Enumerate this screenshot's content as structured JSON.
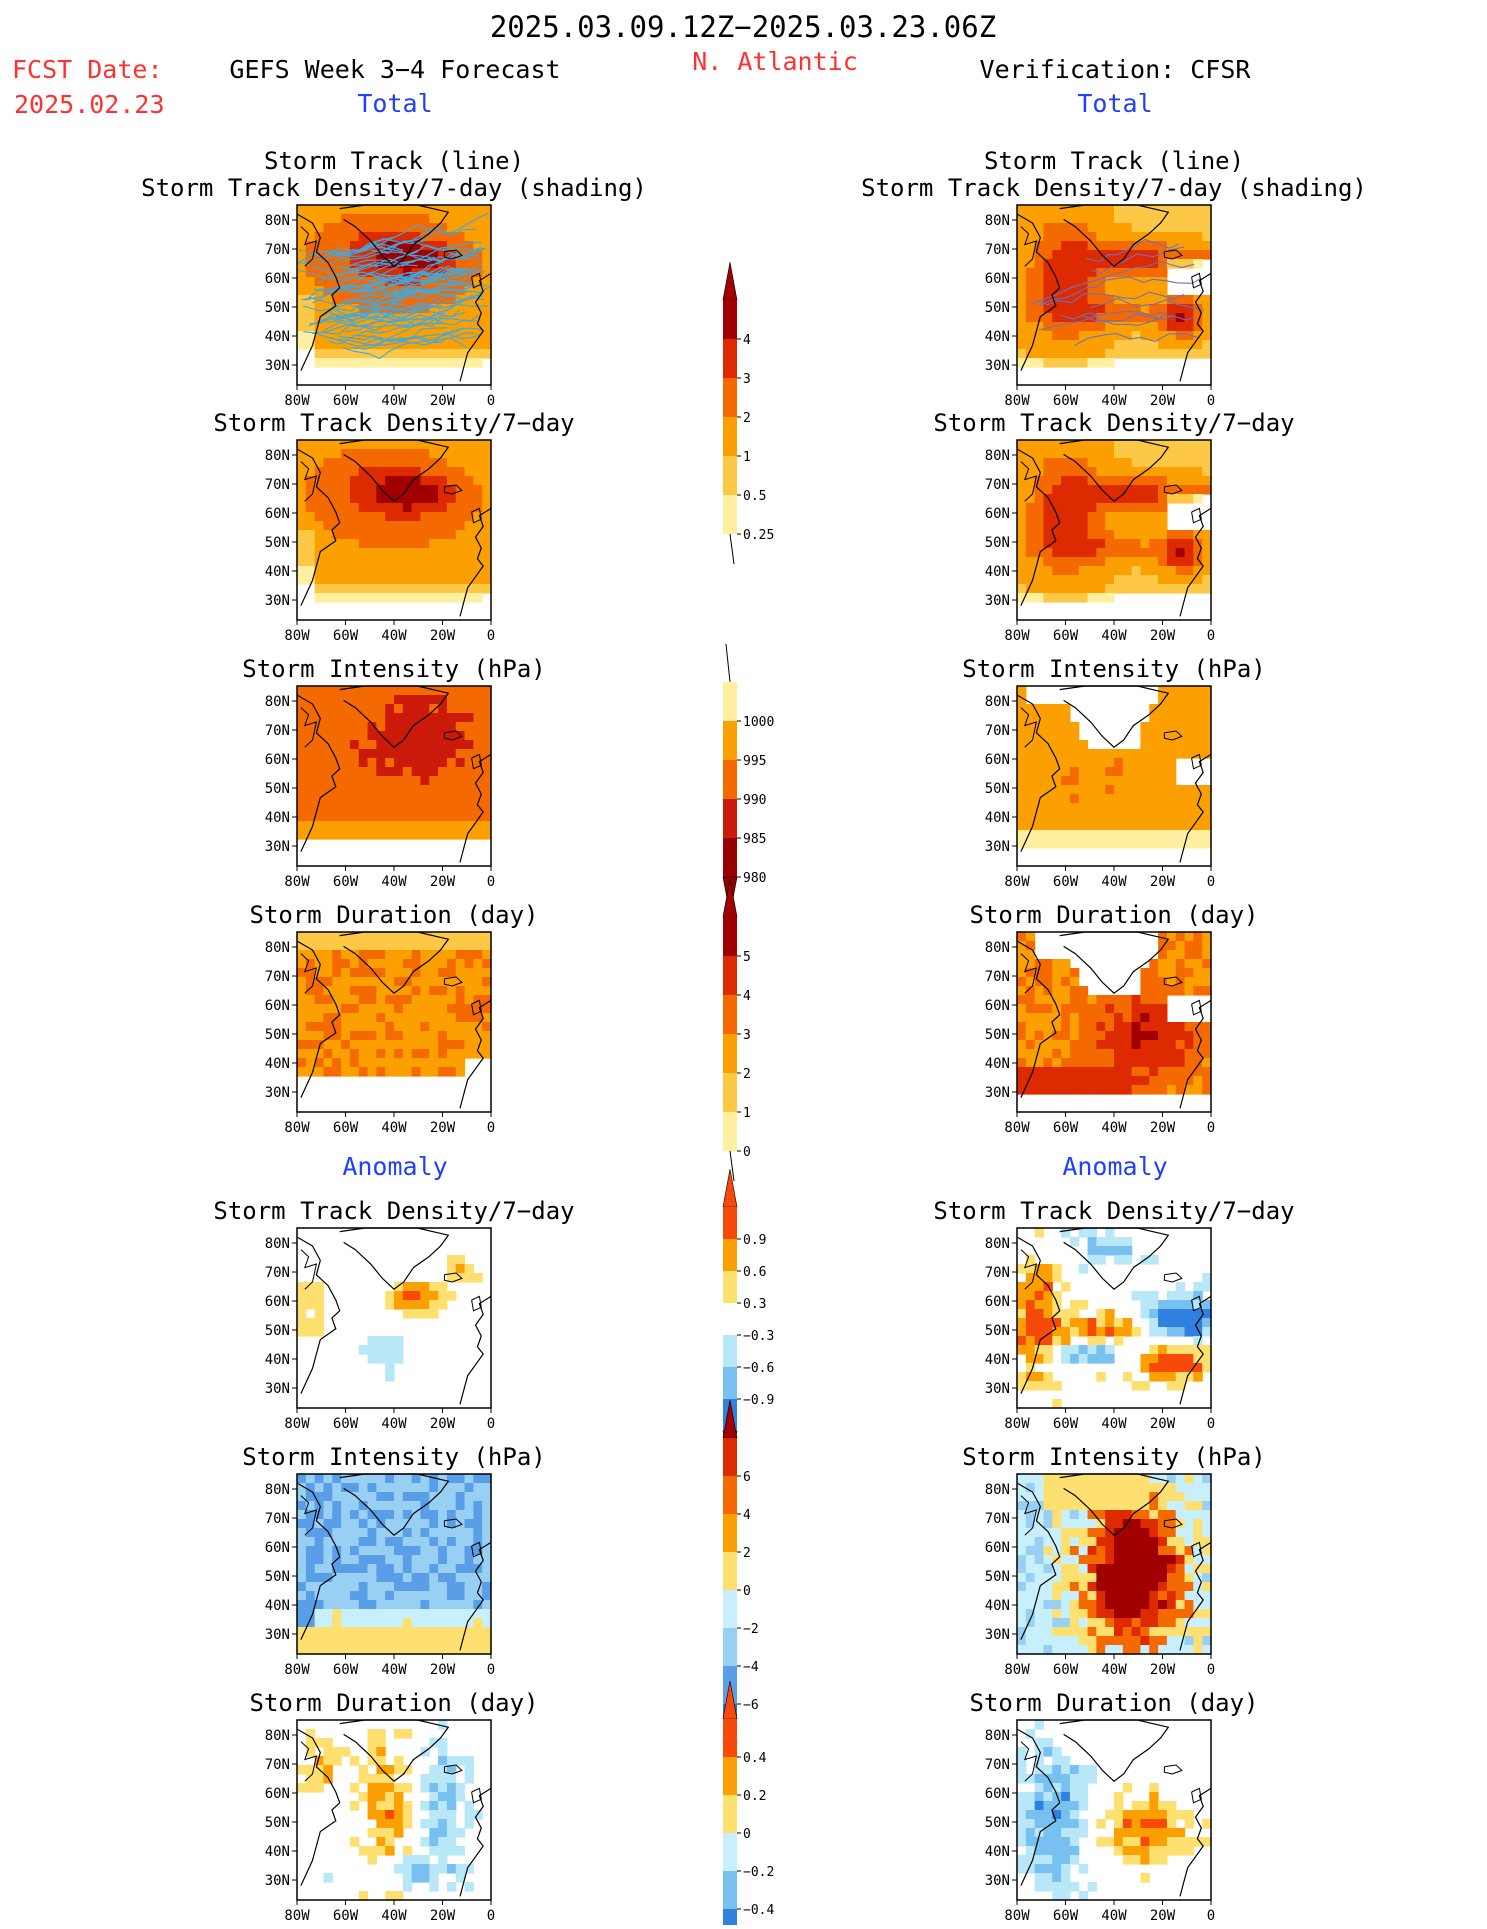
{
  "header": {
    "date_range": "2025.03.09.12Z−2025.03.23.06Z",
    "fcst_label": "FCST Date:",
    "fcst_date": "2025.02.23",
    "model_title": "GEFS Week 3−4 Forecast",
    "region": "N. Atlantic",
    "verification": "Verification: CFSR",
    "left_section": "Total",
    "right_section": "Total",
    "left_anomaly": "Anomaly",
    "right_anomaly": "Anomaly"
  },
  "colors": {
    "title_red": "#ff3030",
    "section_blue": "#2040ff",
    "track_line": "#40a8e0",
    "track_line_dark": "#7070c0"
  },
  "map": {
    "lon_labels": [
      "80W",
      "60W",
      "40W",
      "20W",
      "0"
    ],
    "lat_labels": [
      "80N",
      "70N",
      "60N",
      "50N",
      "40N",
      "30N"
    ]
  },
  "chart_data": [
    {
      "id": "fc_track",
      "type": "heatmap",
      "title": "Storm Track (line)",
      "subtitle": "Storm Track Density/7-day (shading)",
      "scale": "density",
      "pattern": "fc_density"
    },
    {
      "id": "obs_track",
      "type": "heatmap",
      "title": "Storm Track (line)",
      "subtitle": "Storm Track Density/7-day (shading)",
      "scale": "density",
      "pattern": "obs_density"
    },
    {
      "id": "fc_density",
      "type": "heatmap",
      "title": "Storm Track Density/7−day",
      "scale": "density",
      "pattern": "fc_density"
    },
    {
      "id": "obs_density",
      "type": "heatmap",
      "title": "Storm Track Density/7−day",
      "scale": "density",
      "pattern": "obs_density"
    },
    {
      "id": "fc_intensity",
      "type": "heatmap",
      "title": "Storm Intensity (hPa)",
      "scale": "intensity",
      "pattern": "fc_intensity"
    },
    {
      "id": "obs_intensity",
      "type": "heatmap",
      "title": "Storm Intensity (hPa)",
      "scale": "intensity",
      "pattern": "obs_intensity"
    },
    {
      "id": "fc_duration",
      "type": "heatmap",
      "title": "Storm Duration (day)",
      "scale": "duration",
      "pattern": "fc_duration"
    },
    {
      "id": "obs_duration",
      "type": "heatmap",
      "title": "Storm Duration (day)",
      "scale": "duration",
      "pattern": "obs_duration"
    },
    {
      "id": "fc_density_anom",
      "type": "heatmap",
      "title": "Storm Track Density/7−day",
      "scale": "density_anom",
      "pattern": "fc_density_anom"
    },
    {
      "id": "obs_density_anom",
      "type": "heatmap",
      "title": "Storm Track Density/7−day",
      "scale": "density_anom",
      "pattern": "obs_density_anom"
    },
    {
      "id": "fc_intensity_anom",
      "type": "heatmap",
      "title": "Storm Intensity (hPa)",
      "scale": "intensity_anom",
      "pattern": "fc_intensity_anom"
    },
    {
      "id": "obs_intensity_anom",
      "type": "heatmap",
      "title": "Storm Intensity (hPa)",
      "scale": "intensity_anom",
      "pattern": "obs_intensity_anom"
    },
    {
      "id": "fc_duration_anom",
      "type": "heatmap",
      "title": "Storm Duration (day)",
      "scale": "duration_anom",
      "pattern": "fc_duration_anom"
    },
    {
      "id": "obs_duration_anom",
      "type": "heatmap",
      "title": "Storm Duration (day)",
      "scale": "duration_anom",
      "pattern": "obs_duration_anom"
    }
  ],
  "colorbars": [
    {
      "id": "density",
      "labels": [
        "4",
        "3",
        "2",
        "1",
        "0.5",
        "0.25"
      ],
      "colors": [
        "#a00000",
        "#dd2a00",
        "#f56a00",
        "#fba000",
        "#fdc846",
        "#fff0a0"
      ],
      "top_arrow": "#a00000",
      "bottom_arrow": "none"
    },
    {
      "id": "intensity",
      "labels": [
        "1000",
        "995",
        "990",
        "985",
        "980"
      ],
      "colors": [
        "#fff0a0",
        "#fba000",
        "#f56a00",
        "#cc1a0a",
        "#990000"
      ],
      "top_arrow": "none",
      "bottom_arrow": "#990000"
    },
    {
      "id": "duration",
      "labels": [
        "5",
        "4",
        "3",
        "2",
        "1",
        "0"
      ],
      "colors": [
        "#a00000",
        "#dd2a00",
        "#f56a00",
        "#fba000",
        "#fdc846",
        "#fff0a0"
      ],
      "top_arrow": "#a00000",
      "bottom_arrow": "none"
    },
    {
      "id": "density_anom",
      "labels": [
        "0.9",
        "0.6",
        "0.3",
        "−0.3",
        "−0.6",
        "−0.9"
      ],
      "colors": [
        "#f64a0a",
        "#fba000",
        "#fde070",
        "#ffffff",
        "#b8e8f8",
        "#78c0f0",
        "#3080e0"
      ],
      "top_arrow": "#f64a0a",
      "bottom_arrow": "#1060d0"
    },
    {
      "id": "intensity_anom",
      "labels": [
        "6",
        "4",
        "2",
        "0",
        "−2",
        "−4",
        "−6"
      ],
      "colors": [
        "#dd2a00",
        "#f56a00",
        "#fba000",
        "#fde070",
        "#c8f0fc",
        "#98d0f4",
        "#5a9ee8",
        "#2c6ed8"
      ],
      "top_arrow": "#a00000",
      "bottom_arrow": "#1060d0"
    },
    {
      "id": "duration_anom",
      "labels": [
        "0.4",
        "0.2",
        "0",
        "−0.2",
        "−0.4"
      ],
      "colors": [
        "#f64a0a",
        "#fba000",
        "#fde070",
        "#c8f0fc",
        "#78c0f0",
        "#3080e0"
      ],
      "top_arrow": "#f64a0a",
      "bottom_arrow": "#1060d0"
    }
  ]
}
